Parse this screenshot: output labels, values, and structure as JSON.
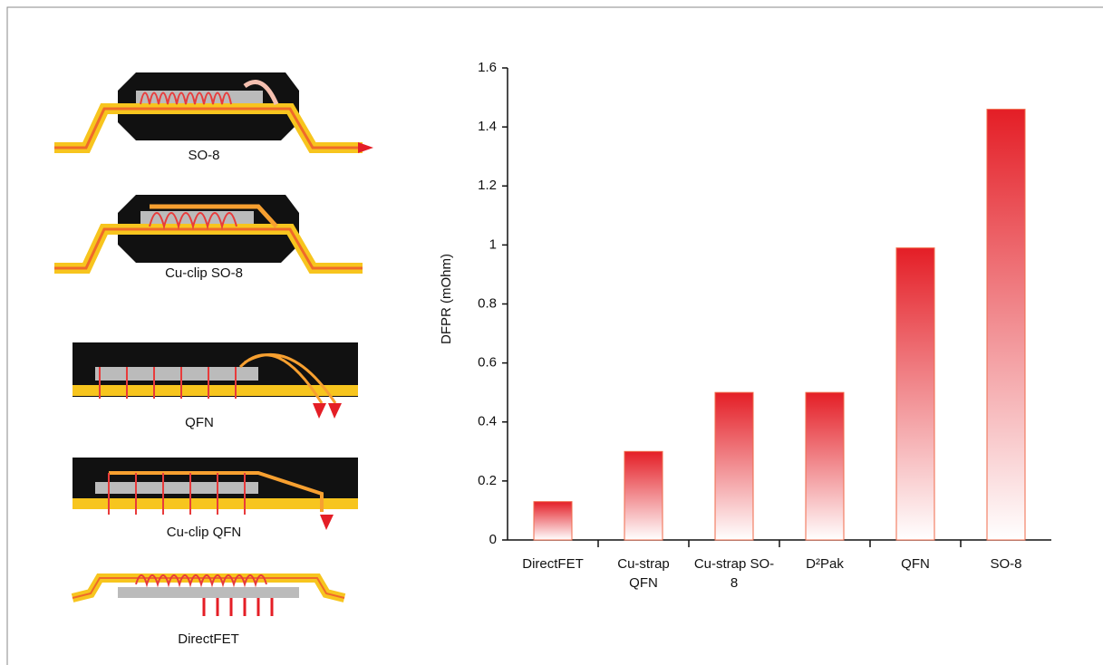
{
  "illustrations": {
    "labels": [
      "SO-8",
      "Cu-clip SO-8",
      "QFN",
      "Cu-clip QFN",
      "DirectFET"
    ]
  },
  "chart_data": {
    "type": "bar",
    "y_label": "DFPR (mOhm)",
    "categories": [
      "DirectFET",
      "Cu-strap QFN",
      "Cu-strap SO-8",
      "D²Pak",
      "QFN",
      "SO-8"
    ],
    "values": [
      0.13,
      0.3,
      0.5,
      0.5,
      0.99,
      1.46
    ],
    "color": "#e41e26",
    "ylim": [
      0,
      1.6
    ],
    "yticks": [
      0,
      0.2,
      0.4,
      0.6,
      0.8,
      1,
      1.2,
      1.4,
      1.6
    ]
  }
}
